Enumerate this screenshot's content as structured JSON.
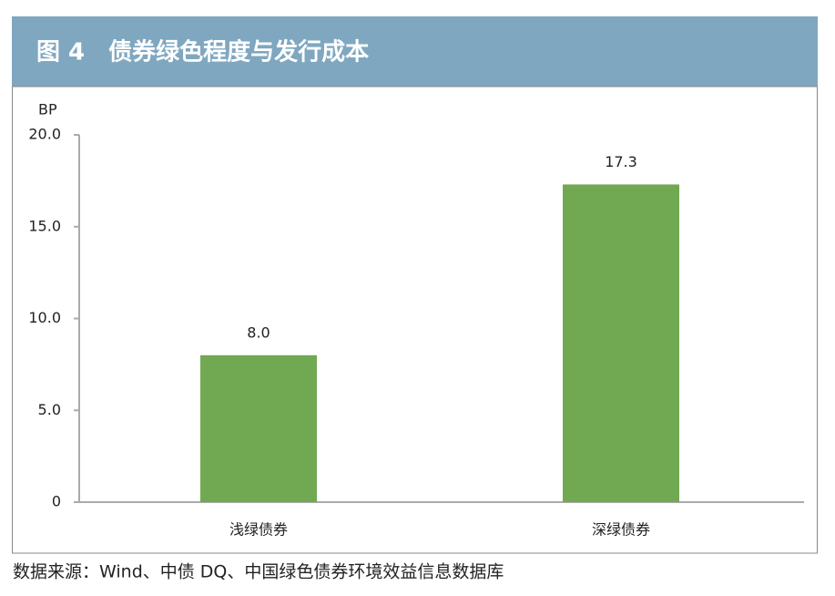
{
  "chart_data": {
    "type": "bar",
    "title": "图 4　债券绿色程度与发行成本",
    "y_unit": "BP",
    "categories": [
      "浅绿债券",
      "深绿债券"
    ],
    "values": [
      8.0,
      17.3
    ],
    "value_labels": [
      "8.0",
      "17.3"
    ],
    "color": "#70a952",
    "header_color": "#7fa7c0",
    "ylim": [
      0,
      20
    ],
    "yticks": [
      0,
      {
        "value": 5,
        "label": "5.0"
      },
      {
        "value": 10,
        "label": "10.0"
      },
      {
        "value": 15,
        "label": "15.0"
      },
      {
        "value": 20,
        "label": "20.0"
      }
    ],
    "grid": false,
    "source": "数据来源：Wind、中债 DQ、中国绿色债券环境效益信息数据库"
  }
}
